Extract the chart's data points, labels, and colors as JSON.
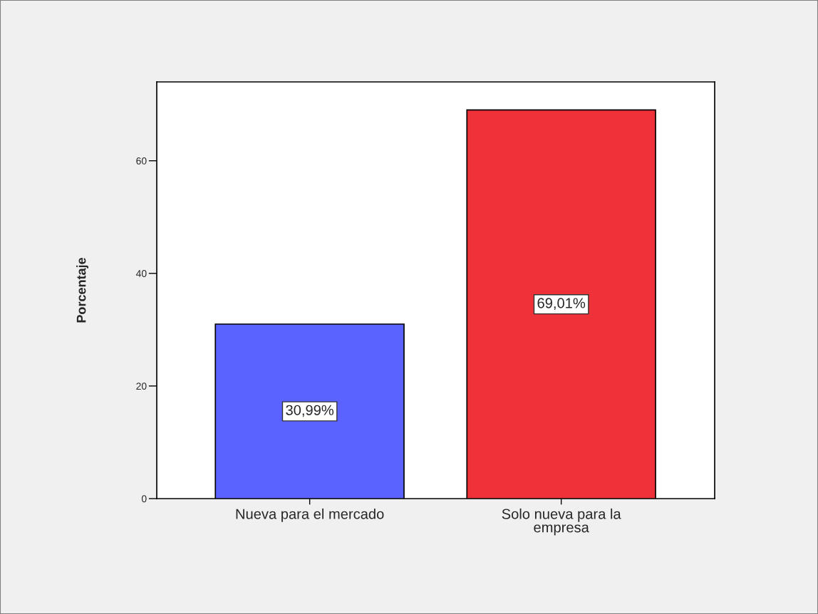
{
  "chart_data": {
    "type": "bar",
    "ylabel": "Porcentaje",
    "categories": [
      "Nueva para el mercado",
      "Solo nueva para la\nempresa"
    ],
    "values": [
      30.99,
      69.01
    ],
    "colors": [
      "#5a62ff",
      "#ef3139"
    ],
    "value_labels": [
      "30,99%",
      "69,01%"
    ],
    "ylim": [
      0,
      74
    ],
    "yticks": [
      0,
      20,
      40,
      60
    ]
  }
}
